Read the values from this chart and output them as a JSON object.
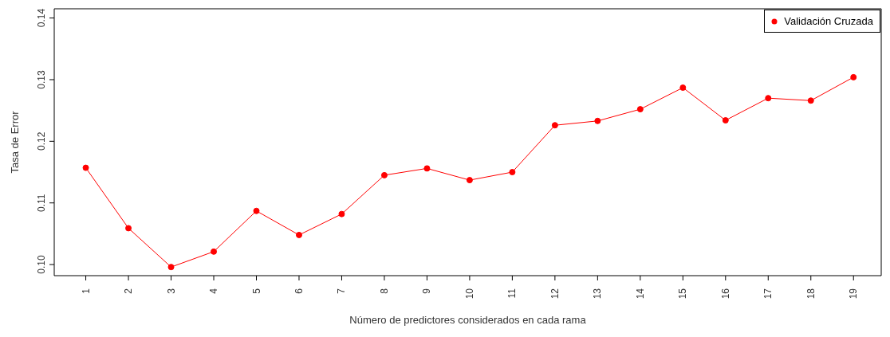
{
  "chart_data": {
    "type": "line",
    "xlabel": "Número de predictores considerados en cada rama",
    "ylabel": "Tasa de Error",
    "x": [
      1,
      2,
      3,
      4,
      5,
      6,
      7,
      8,
      9,
      10,
      11,
      12,
      13,
      14,
      15,
      16,
      17,
      18,
      19
    ],
    "series": [
      {
        "name": "Validación Cruzada",
        "color": "#ff0000",
        "values": [
          0.1157,
          0.1059,
          0.0996,
          0.1021,
          0.1087,
          0.1048,
          0.1082,
          0.1145,
          0.1156,
          0.1137,
          0.115,
          0.1226,
          0.1233,
          0.1252,
          0.1287,
          0.1234,
          0.127,
          0.1266,
          0.1304
        ]
      }
    ],
    "xlim": [
      0.26,
      19.65
    ],
    "xticks": [
      1,
      2,
      3,
      4,
      5,
      6,
      7,
      8,
      9,
      10,
      11,
      12,
      13,
      14,
      15,
      16,
      17,
      18,
      19
    ],
    "ylim": [
      0.0982,
      0.1415
    ],
    "yticks": [
      {
        "value": 0.1,
        "label": "0.10"
      },
      {
        "value": 0.11,
        "label": "0.11"
      },
      {
        "value": 0.12,
        "label": "0.12"
      },
      {
        "value": 0.13,
        "label": "0.13"
      },
      {
        "value": 0.14,
        "label": "0.14"
      }
    ],
    "marker": "circle",
    "legend": "top right",
    "grid": false
  }
}
